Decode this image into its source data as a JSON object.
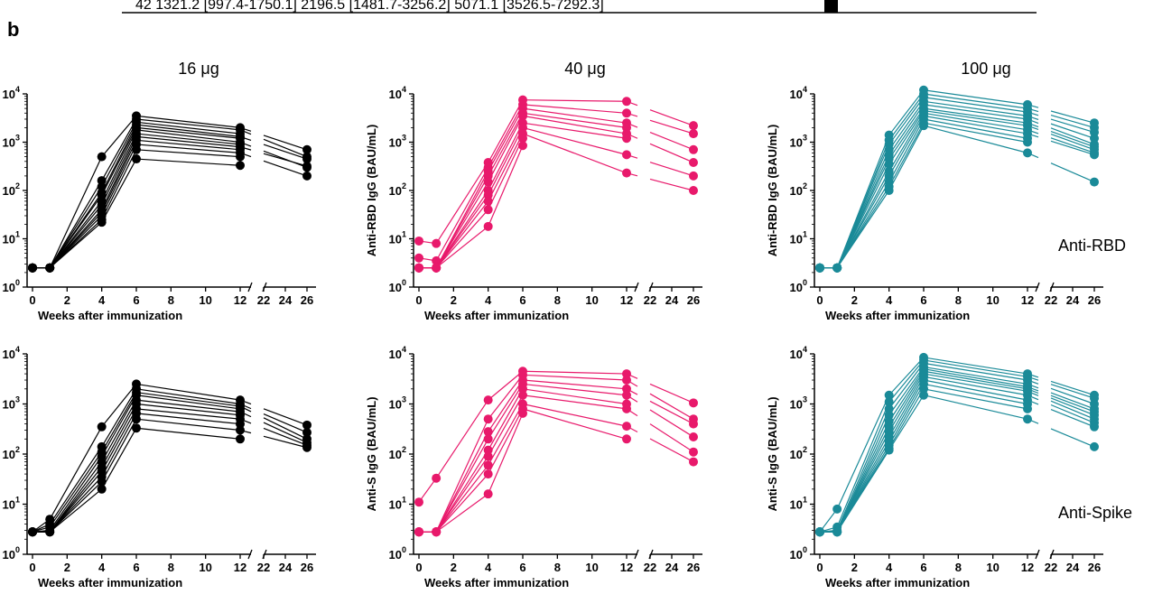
{
  "header": {
    "table_row": "42    1321.2  [997.4-1750.1]     2196.5  [1481.7-3256.2]     5071.1  [3526.5-7292.3]",
    "panel_letter": "b"
  },
  "colors": {
    "16": "#000000",
    "40": "#e8196b",
    "100": "#1a8a98"
  },
  "chart_data": [
    {
      "type": "line",
      "title": "16 μg",
      "dose": "16",
      "row": "rbd",
      "xlabel": "Weeks after immunization",
      "ylabel": "",
      "yscale": "log",
      "ylim": [
        1,
        10000
      ],
      "x": [
        0,
        1,
        4,
        6,
        12,
        26
      ],
      "series": [
        {
          "values": [
            2.5,
            2.5,
            500,
            3500,
            2000,
            700
          ]
        },
        {
          "values": [
            2.5,
            2.5,
            160,
            3000,
            1800,
            500
          ]
        },
        {
          "values": [
            2.5,
            2.5,
            120,
            2600,
            1500,
            null
          ]
        },
        {
          "values": [
            2.5,
            2.5,
            90,
            2300,
            1300,
            450
          ]
        },
        {
          "values": [
            2.5,
            2.5,
            80,
            2000,
            1200,
            null
          ]
        },
        {
          "values": [
            2.5,
            2.5,
            60,
            1800,
            1000,
            300
          ]
        },
        {
          "values": [
            2.5,
            2.5,
            50,
            1500,
            900,
            null
          ]
        },
        {
          "values": [
            2.5,
            2.5,
            40,
            1300,
            800,
            320
          ]
        },
        {
          "values": [
            2.5,
            2.5,
            35,
            1100,
            700,
            null
          ]
        },
        {
          "values": [
            2.5,
            2.5,
            30,
            900,
            600,
            200
          ]
        },
        {
          "values": [
            2.5,
            2.5,
            25,
            700,
            500,
            null
          ]
        },
        {
          "values": [
            2.5,
            2.5,
            22,
            450,
            330,
            null
          ]
        }
      ]
    },
    {
      "type": "line",
      "title": "40 μg",
      "dose": "40",
      "row": "rbd",
      "xlabel": "Weeks after immunization",
      "ylabel": "Anti-RBD IgG (BAU/mL)",
      "yscale": "log",
      "ylim": [
        1,
        10000
      ],
      "x": [
        0,
        1,
        4,
        6,
        12,
        26
      ],
      "series": [
        {
          "values": [
            9,
            8,
            380,
            7500,
            7000,
            2200
          ]
        },
        {
          "values": [
            4,
            3.5,
            300,
            6000,
            4000,
            1500
          ]
        },
        {
          "values": [
            2.5,
            2.5,
            250,
            5000,
            2500,
            700
          ]
        },
        {
          "values": [
            2.5,
            2.5,
            200,
            4000,
            2000,
            null
          ]
        },
        {
          "values": [
            2.5,
            2.5,
            150,
            3500,
            1500,
            380
          ]
        },
        {
          "values": [
            2.5,
            2.5,
            100,
            2500,
            1200,
            null
          ]
        },
        {
          "values": [
            2.5,
            2.5,
            80,
            2000,
            550,
            200
          ]
        },
        {
          "values": [
            2.5,
            2.5,
            60,
            1500,
            230,
            100
          ]
        },
        {
          "values": [
            2.5,
            2.5,
            40,
            1200,
            null,
            null
          ]
        },
        {
          "values": [
            2.5,
            2.5,
            18,
            850,
            null,
            null
          ]
        }
      ]
    },
    {
      "type": "line",
      "title": "100 μg",
      "dose": "100",
      "row": "rbd",
      "xlabel": "Weeks after immunization",
      "ylabel": "Anti-RBD IgG (BAU/mL)",
      "yscale": "log",
      "ylim": [
        1,
        10000
      ],
      "x": [
        0,
        1,
        4,
        6,
        12,
        26
      ],
      "annotation": "Anti-RBD",
      "series": [
        {
          "values": [
            2.5,
            2.5,
            1400,
            12000,
            6000,
            2500
          ]
        },
        {
          "values": [
            2.5,
            2.5,
            1100,
            10000,
            5000,
            2000
          ]
        },
        {
          "values": [
            2.5,
            2.5,
            900,
            8500,
            4200,
            1600
          ]
        },
        {
          "values": [
            2.5,
            2.5,
            700,
            7000,
            3500,
            1200
          ]
        },
        {
          "values": [
            2.5,
            2.5,
            550,
            6000,
            3000,
            900
          ]
        },
        {
          "values": [
            2.5,
            2.5,
            450,
            5000,
            2500,
            800
          ]
        },
        {
          "values": [
            2.5,
            2.5,
            350,
            4500,
            2200,
            700
          ]
        },
        {
          "values": [
            2.5,
            2.5,
            250,
            4000,
            1800,
            600
          ]
        },
        {
          "values": [
            2.5,
            2.5,
            200,
            3500,
            1500,
            550
          ]
        },
        {
          "values": [
            2.5,
            2.5,
            150,
            3000,
            1200,
            null
          ]
        },
        {
          "values": [
            2.5,
            2.5,
            120,
            2500,
            1000,
            null
          ]
        },
        {
          "values": [
            2.5,
            2.5,
            100,
            2200,
            600,
            150
          ]
        }
      ]
    },
    {
      "type": "line",
      "title": "",
      "dose": "16",
      "row": "spike",
      "xlabel": "Weeks after immunization",
      "ylabel": "",
      "yscale": "log",
      "ylim": [
        1,
        10000
      ],
      "x": [
        0,
        1,
        4,
        6,
        12,
        26
      ],
      "series": [
        {
          "values": [
            2.8,
            5,
            350,
            2500,
            1200,
            380
          ]
        },
        {
          "values": [
            2.8,
            4,
            140,
            2000,
            1000,
            270
          ]
        },
        {
          "values": [
            2.8,
            3.5,
            110,
            1700,
            900,
            200
          ]
        },
        {
          "values": [
            2.8,
            3,
            90,
            1500,
            800,
            null
          ]
        },
        {
          "values": [
            2.8,
            2.8,
            70,
            1200,
            700,
            170
          ]
        },
        {
          "values": [
            2.8,
            2.8,
            55,
            1000,
            600,
            null
          ]
        },
        {
          "values": [
            2.8,
            2.8,
            45,
            800,
            500,
            150
          ]
        },
        {
          "values": [
            2.8,
            2.8,
            35,
            650,
            400,
            null
          ]
        },
        {
          "values": [
            2.8,
            2.8,
            28,
            500,
            300,
            135
          ]
        },
        {
          "values": [
            2.8,
            2.8,
            20,
            330,
            200,
            null
          ]
        }
      ]
    },
    {
      "type": "line",
      "title": "",
      "dose": "40",
      "row": "spike",
      "xlabel": "Weeks after immunization",
      "ylabel": "Anti-S IgG (BAU/mL)",
      "yscale": "log",
      "ylim": [
        1,
        10000
      ],
      "x": [
        0,
        1,
        4,
        6,
        12,
        26
      ],
      "series": [
        {
          "values": [
            11,
            33,
            1200,
            4500,
            4000,
            1050
          ]
        },
        {
          "values": [
            2.8,
            2.8,
            500,
            3800,
            3000,
            500
          ]
        },
        {
          "values": [
            2.8,
            2.8,
            280,
            3000,
            2000,
            400
          ]
        },
        {
          "values": [
            2.8,
            2.8,
            200,
            2500,
            1500,
            220
          ]
        },
        {
          "values": [
            2.8,
            2.8,
            120,
            2000,
            1000,
            null
          ]
        },
        {
          "values": [
            2.8,
            2.8,
            90,
            1500,
            800,
            110
          ]
        },
        {
          "values": [
            2.8,
            2.8,
            60,
            1000,
            360,
            70
          ]
        },
        {
          "values": [
            2.8,
            2.8,
            40,
            800,
            200,
            null
          ]
        },
        {
          "values": [
            2.8,
            2.8,
            16,
            650,
            null,
            null
          ]
        }
      ]
    },
    {
      "type": "line",
      "title": "",
      "dose": "100",
      "row": "spike",
      "xlabel": "Weeks after immunization",
      "ylabel": "Anti-S IgG (BAU/mL)",
      "yscale": "log",
      "ylim": [
        1,
        10000
      ],
      "x": [
        0,
        1,
        4,
        6,
        12,
        26
      ],
      "annotation": "Anti-Spike",
      "series": [
        {
          "values": [
            2.8,
            8,
            1500,
            8500,
            4000,
            1500
          ]
        },
        {
          "values": [
            2.8,
            3.5,
            1100,
            7500,
            3500,
            1300
          ]
        },
        {
          "values": [
            2.8,
            3,
            800,
            6500,
            3000,
            1000
          ]
        },
        {
          "values": [
            2.8,
            2.8,
            600,
            5500,
            2500,
            800
          ]
        },
        {
          "values": [
            2.8,
            2.8,
            450,
            5000,
            2200,
            700
          ]
        },
        {
          "values": [
            2.8,
            2.8,
            350,
            4500,
            2000,
            600
          ]
        },
        {
          "values": [
            2.8,
            2.8,
            280,
            4000,
            1800,
            500
          ]
        },
        {
          "values": [
            2.8,
            2.8,
            220,
            3500,
            1500,
            420
          ]
        },
        {
          "values": [
            2.8,
            2.8,
            180,
            3000,
            1200,
            350
          ]
        },
        {
          "values": [
            2.8,
            2.8,
            150,
            2500,
            1000,
            null
          ]
        },
        {
          "values": [
            2.8,
            2.8,
            130,
            2000,
            800,
            null
          ]
        },
        {
          "values": [
            2.8,
            2.8,
            120,
            1500,
            500,
            140
          ]
        }
      ]
    }
  ]
}
